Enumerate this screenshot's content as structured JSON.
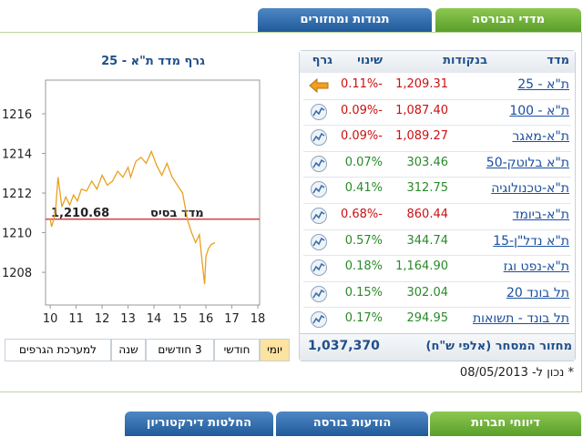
{
  "tabs_top": [
    "מדדי הבורסה",
    "תנודות ומחזורים"
  ],
  "chart": {
    "type": "line",
    "title": "גרף מדד ת\"א - 25",
    "base": {
      "value": 1210.68,
      "label": "1,210.68"
    },
    "base_caption": "מדד בסיס",
    "x": [
      10.0,
      10.05,
      10.1,
      10.2,
      10.3,
      10.35,
      10.45,
      10.6,
      10.75,
      10.9,
      11.05,
      11.2,
      11.4,
      11.6,
      11.8,
      12.0,
      12.2,
      12.4,
      12.6,
      12.8,
      13.0,
      13.1,
      13.3,
      13.5,
      13.7,
      13.9,
      14.1,
      14.3,
      14.5,
      14.7,
      14.9,
      15.1,
      15.2,
      15.3,
      15.45,
      15.6,
      15.75,
      15.85,
      15.95,
      16.0,
      16.1,
      16.2,
      16.35
    ],
    "values": [
      1210.7,
      1210.3,
      1210.5,
      1211.0,
      1212.8,
      1212.3,
      1211.3,
      1211.8,
      1211.4,
      1211.9,
      1211.6,
      1212.2,
      1212.1,
      1212.6,
      1212.2,
      1212.9,
      1212.4,
      1212.6,
      1213.1,
      1212.8,
      1213.3,
      1212.8,
      1213.6,
      1213.8,
      1213.5,
      1214.1,
      1213.4,
      1212.9,
      1213.5,
      1212.8,
      1212.4,
      1212.0,
      1211.3,
      1210.6,
      1210.0,
      1209.5,
      1209.9,
      1208.6,
      1207.4,
      1208.8,
      1209.2,
      1209.4,
      1209.5
    ],
    "xlim": [
      9.82,
      18.07
    ],
    "ylim": [
      1206.35,
      1217.7
    ],
    "xticks": [
      10,
      11,
      12,
      13,
      14,
      15,
      16,
      17,
      18
    ],
    "yticks": [
      1208,
      1210,
      1212,
      1214,
      1216
    ],
    "color": "#e8a020",
    "base_color": "#cc2222"
  },
  "range_buttons": [
    "יומי",
    "חודשי",
    "3 חודשים",
    "שנה",
    "למערכת הגרפים"
  ],
  "table": {
    "header": [
      "מדד",
      "בנקודות",
      "שינוי",
      "גרף"
    ],
    "rows": [
      [
        "ת\"א - 25",
        "1,209.31",
        "-0.11%"
      ],
      [
        "ת\"א - 100",
        "1,087.40",
        "-0.09%"
      ],
      [
        "ת\"א-מאגר",
        "1,089.27",
        "-0.09%"
      ],
      [
        "ת\"א בלוטק-50",
        "303.46",
        "0.07%"
      ],
      [
        "ת\"א-טכנולוגיה",
        "312.75",
        "0.41%"
      ],
      [
        "ת\"א-ביומד",
        "860.44",
        "-0.68%"
      ],
      [
        "ת\"א נדל\"ן-15",
        "344.74",
        "0.57%"
      ],
      [
        "ת\"א-נפט וגז",
        "1,164.90",
        "0.18%"
      ],
      [
        "תל בונד 20",
        "302.04",
        "0.15%"
      ],
      [
        "תל בונד - תשואות",
        "294.95",
        "0.17%"
      ]
    ],
    "footer": {
      "label": "מחזור המסחר (אלפי ש\"ח)",
      "value": "1,037,370"
    }
  },
  "note": "* נכון ל- 08/05/2013",
  "tabs_bottom": [
    "דיווחי חברות",
    "הודעות בורסה",
    "החלטות דירקטוריון"
  ]
}
